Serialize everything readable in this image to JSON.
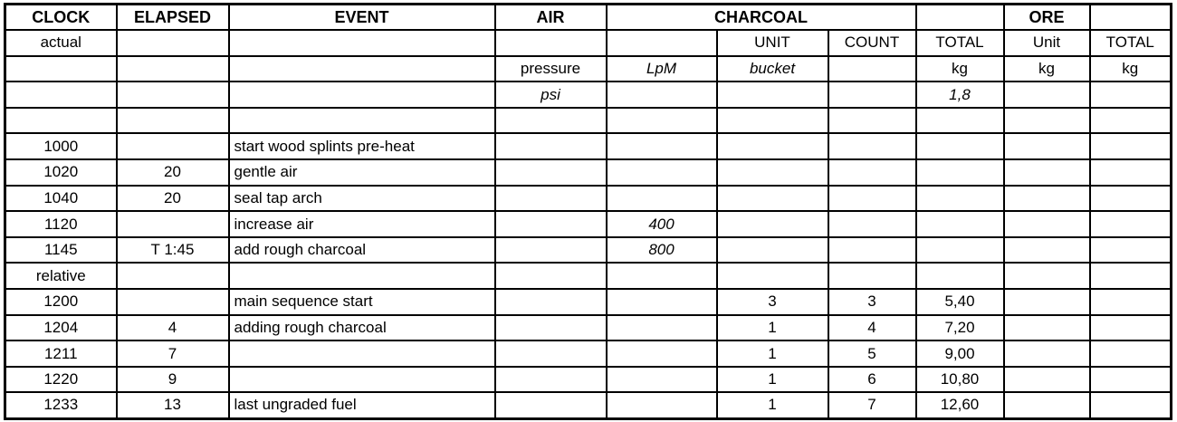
{
  "table": {
    "header": {
      "clock": "CLOCK",
      "elapsed": "ELAPSED",
      "event": "EVENT",
      "air": "AIR",
      "charcoal": "CHARCOAL",
      "ore": "ORE"
    },
    "subheader": {
      "clock_type": "actual",
      "charcoal_unit": "UNIT",
      "charcoal_count": "COUNT",
      "charcoal_total": "TOTAL",
      "ore_unit": "Unit",
      "ore_total": "TOTAL"
    },
    "units": {
      "air_pressure": "pressure",
      "air_flow": "LpM",
      "charcoal_unit": "bucket",
      "charcoal_total": "kg",
      "ore_unit": "kg",
      "ore_total": "kg"
    },
    "units2": {
      "air_pressure": "psi",
      "charcoal_kg_per_unit": "1,8"
    },
    "column_keys": [
      "clock",
      "elapsed",
      "event",
      "air-pressure",
      "air-lpm",
      "charcoal-unit",
      "charcoal-count",
      "charcoal-total",
      "ore-unit",
      "ore-total"
    ],
    "rows": [
      [
        "",
        "",
        "",
        "",
        "",
        "",
        "",
        "",
        "",
        ""
      ],
      [
        "1000",
        "",
        "start wood splints pre-heat",
        "",
        "",
        "",
        "",
        "",
        "",
        ""
      ],
      [
        "1020",
        "20",
        "gentle air",
        "",
        "",
        "",
        "",
        "",
        "",
        ""
      ],
      [
        "1040",
        "20",
        "seal tap arch",
        "",
        "",
        "",
        "",
        "",
        "",
        ""
      ],
      [
        "1120",
        "",
        "increase air",
        "",
        "400",
        "",
        "",
        "",
        "",
        ""
      ],
      [
        "1145",
        "T 1:45",
        "add rough charcoal",
        "",
        "800",
        "",
        "",
        "",
        "",
        ""
      ],
      [
        "relative",
        "",
        "",
        "",
        "",
        "",
        "",
        "",
        "",
        ""
      ],
      [
        "1200",
        "",
        "main sequence start",
        "",
        "",
        "3",
        "3",
        "5,40",
        "",
        ""
      ],
      [
        "1204",
        "4",
        "adding rough charcoal",
        "",
        "",
        "1",
        "4",
        "7,20",
        "",
        ""
      ],
      [
        "1211",
        "7",
        "",
        "",
        "",
        "1",
        "5",
        "9,00",
        "",
        ""
      ],
      [
        "1220",
        "9",
        "",
        "",
        "",
        "1",
        "6",
        "10,80",
        "",
        ""
      ],
      [
        "1233",
        "13",
        "last ungraded fuel",
        "",
        "",
        "1",
        "7",
        "12,60",
        "",
        ""
      ]
    ]
  },
  "colors": {
    "border": "#000000",
    "background": "#ffffff",
    "text": "#000000"
  }
}
